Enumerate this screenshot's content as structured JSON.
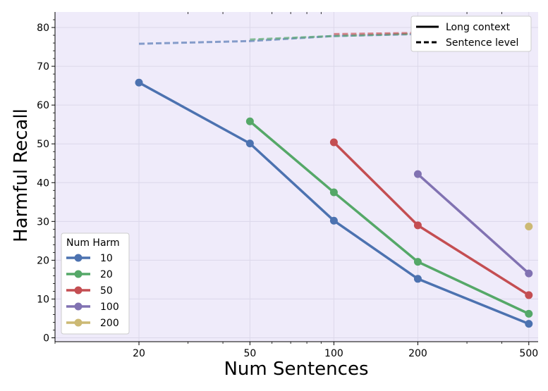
{
  "chart_data": {
    "type": "line",
    "title": "",
    "xlabel": "Num Sentences",
    "ylabel": "Harmful Recall",
    "x_ticks": [
      20,
      50,
      100,
      200,
      500
    ],
    "x_tick_labels": [
      "20",
      "50",
      "100",
      "200",
      "500"
    ],
    "y_ticks": [
      0,
      10,
      20,
      30,
      40,
      50,
      60,
      70,
      80
    ],
    "y_tick_labels": [
      "0",
      "10",
      "20",
      "30",
      "40",
      "50",
      "60",
      "70",
      "80"
    ],
    "xlim": [
      10,
      540
    ],
    "ylim": [
      -1,
      84
    ],
    "grid": true,
    "background": "#efebfa",
    "legend_title": "Num Harm",
    "legend_position": "lower-left",
    "style_legend_position": "top-right",
    "style_legend": [
      {
        "label": "Long context",
        "dash": "solid"
      },
      {
        "label": "Sentence level",
        "dash": "dashed"
      }
    ],
    "series": [
      {
        "name": "10",
        "color": "#4c72b0",
        "x": [
          20,
          50,
          100,
          200,
          500
        ],
        "y": [
          65.8,
          50.1,
          30.2,
          15.2,
          3.6
        ]
      },
      {
        "name": "20",
        "color": "#55a868",
        "x": [
          50,
          100,
          200,
          500
        ],
        "y": [
          55.8,
          37.5,
          19.6,
          6.2
        ]
      },
      {
        "name": "50",
        "color": "#c44e52",
        "x": [
          100,
          200,
          500
        ],
        "y": [
          50.4,
          29.0,
          11.0
        ]
      },
      {
        "name": "100",
        "color": "#8172b2",
        "x": [
          200,
          500
        ],
        "y": [
          42.2,
          16.6
        ]
      },
      {
        "name": "200",
        "color": "#ccb974",
        "x": [
          500
        ],
        "y": [
          28.7
        ]
      }
    ],
    "sentence_level_series": [
      {
        "name": "10",
        "color": "#4c72b0",
        "x": [
          20,
          50,
          100,
          200,
          500
        ],
        "y": [
          75.8,
          76.5,
          77.8,
          78.3,
          79.4
        ]
      },
      {
        "name": "20",
        "color": "#55a868",
        "x": [
          50,
          100,
          200,
          500
        ],
        "y": [
          76.9,
          77.8,
          78.4,
          78.6
        ]
      },
      {
        "name": "50",
        "color": "#c44e52",
        "x": [
          100,
          200,
          500
        ],
        "y": [
          78.3,
          78.6,
          78.6
        ]
      },
      {
        "name": "100",
        "color": "#8172b2",
        "x": [
          200,
          500
        ],
        "y": [
          78.5,
          79.2
        ]
      },
      {
        "name": "200",
        "color": "#ccb974",
        "x": [
          500
        ],
        "y": [
          78.8
        ]
      }
    ]
  }
}
